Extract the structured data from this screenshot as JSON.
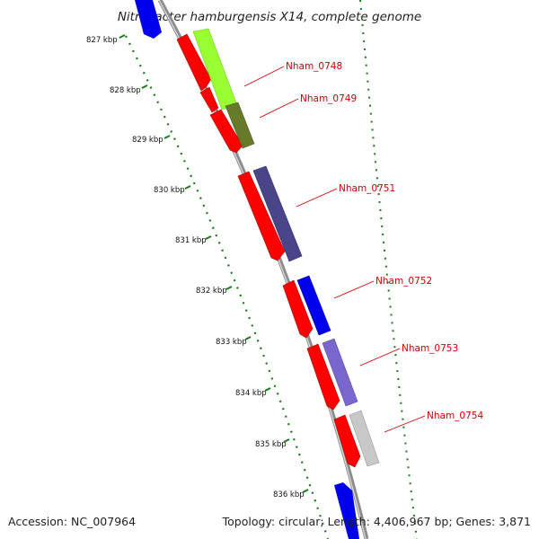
{
  "title": "Nitrobacter hamburgensis X14, complete genome",
  "footer": {
    "accession": "Accession: NC_007964",
    "summary": "Topology: circular; Length: 4,406,967 bp; Genes: 3,871"
  },
  "ticks": [
    "827 kbp",
    "828 kbp",
    "829 kbp",
    "830 kbp",
    "831 kbp",
    "832 kbp",
    "833 kbp",
    "834 kbp",
    "835 kbp",
    "836 kbp"
  ],
  "genes": [
    "Nham_0748",
    "Nham_0749",
    "Nham_0751",
    "Nham_0752",
    "Nham_0753",
    "Nham_0754"
  ],
  "colors": {
    "cds": "#ff0000",
    "label": "#d40000",
    "backbone": "#888888",
    "tick_mark": "#1a7a1a",
    "gene_0748": "#99ff33",
    "gene_0749": "#667a2a",
    "gene_0751": "#4a4488",
    "gene_0752": "#0000ee",
    "gene_0753": "#7a66cc",
    "gene_0754": "#c8c8c8",
    "flank": "#0000ee"
  }
}
